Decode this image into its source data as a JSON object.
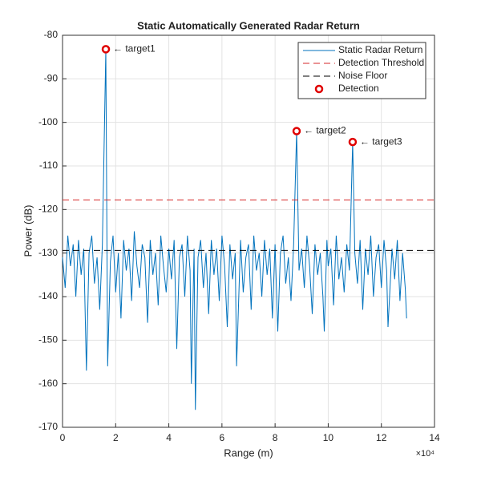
{
  "chart_data": {
    "type": "line",
    "title": "Static Automatically Generated Radar Return",
    "xlabel": "Range (m)",
    "ylabel": "Power (dB)",
    "x_exponent_label": "×10⁴",
    "xlim": [
      0,
      14
    ],
    "xticks": [
      0,
      2,
      4,
      6,
      8,
      10,
      12,
      14
    ],
    "ylim": [
      -170,
      -80
    ],
    "yticks": [
      -170,
      -160,
      -150,
      -140,
      -130,
      -120,
      -110,
      -100,
      -90,
      -80
    ],
    "grid": true,
    "legend": "top-right",
    "series": [
      {
        "name": "Static Radar Return",
        "kind": "line",
        "color": "#0072bd",
        "x": [
          0.0,
          0.1,
          0.2,
          0.3,
          0.4,
          0.5,
          0.6,
          0.7,
          0.8,
          0.9,
          1.0,
          1.1,
          1.2,
          1.3,
          1.4,
          1.5,
          1.63,
          1.7,
          1.8,
          1.9,
          2.0,
          2.1,
          2.2,
          2.3,
          2.4,
          2.5,
          2.6,
          2.7,
          2.8,
          2.9,
          3.0,
          3.1,
          3.2,
          3.3,
          3.4,
          3.5,
          3.6,
          3.7,
          3.8,
          3.9,
          4.0,
          4.1,
          4.2,
          4.3,
          4.4,
          4.5,
          4.6,
          4.7,
          4.8,
          4.85,
          4.95,
          5.0,
          5.1,
          5.2,
          5.3,
          5.4,
          5.5,
          5.6,
          5.7,
          5.8,
          5.9,
          6.0,
          6.1,
          6.2,
          6.3,
          6.4,
          6.5,
          6.55,
          6.7,
          6.8,
          6.9,
          7.0,
          7.1,
          7.2,
          7.3,
          7.4,
          7.5,
          7.6,
          7.7,
          7.8,
          7.9,
          8.0,
          8.1,
          8.2,
          8.3,
          8.4,
          8.5,
          8.6,
          8.7,
          8.81,
          8.9,
          9.0,
          9.1,
          9.2,
          9.3,
          9.4,
          9.5,
          9.6,
          9.7,
          9.8,
          9.85,
          9.95,
          10.0,
          10.1,
          10.2,
          10.3,
          10.4,
          10.5,
          10.6,
          10.7,
          10.8,
          10.92,
          11.0,
          11.1,
          11.2,
          11.3,
          11.4,
          11.5,
          11.6,
          11.7,
          11.8,
          11.9,
          12.0,
          12.1,
          12.2,
          12.25,
          12.4,
          12.5,
          12.6,
          12.7,
          12.8,
          12.9,
          12.95
        ],
        "values": [
          -131,
          -138,
          -126,
          -133,
          -128,
          -140,
          -127,
          -135,
          -129,
          -157,
          -130,
          -126,
          -137,
          -131,
          -143,
          -128,
          -83.2,
          -156,
          -132,
          -126,
          -139,
          -130,
          -145,
          -127,
          -134,
          -129,
          -141,
          -125,
          -133,
          -138,
          -128,
          -131,
          -146,
          -127,
          -135,
          -130,
          -142,
          -126,
          -133,
          -139,
          -129,
          -136,
          -127,
          -152,
          -131,
          -128,
          -140,
          -126,
          -134,
          -160,
          -129,
          -166,
          -131,
          -127,
          -138,
          -130,
          -144,
          -127,
          -135,
          -129,
          -141,
          -126,
          -133,
          -147,
          -128,
          -136,
          -130,
          -156,
          -127,
          -139,
          -131,
          -128,
          -143,
          -126,
          -134,
          -130,
          -140,
          -127,
          -135,
          -129,
          -145,
          -128,
          -148,
          -130,
          -126,
          -137,
          -131,
          -141,
          -128,
          -102.0,
          -134,
          -129,
          -138,
          -126,
          -133,
          -144,
          -128,
          -135,
          -130,
          -140,
          -148,
          -127,
          -133,
          -129,
          -142,
          -126,
          -136,
          -131,
          -139,
          -128,
          -134,
          -104.5,
          -130,
          -137,
          -127,
          -143,
          -129,
          -135,
          -126,
          -140,
          -131,
          -128,
          -138,
          -127,
          -134,
          -147,
          -129,
          -136,
          -127,
          -141,
          -130,
          -138,
          -145
        ]
      },
      {
        "name": "Detection Threshold",
        "kind": "hline",
        "color": "#d62728",
        "value": -117.8
      },
      {
        "name": "Noise Floor",
        "kind": "hline",
        "color": "#000000",
        "value": -129.4
      },
      {
        "name": "Detection",
        "kind": "scatter",
        "color": "#e00000",
        "x": [
          1.63,
          8.81,
          10.92
        ],
        "values": [
          -83.2,
          -102.0,
          -104.5
        ]
      }
    ],
    "annotations": [
      "← target1",
      "← target2",
      "← target3"
    ]
  }
}
